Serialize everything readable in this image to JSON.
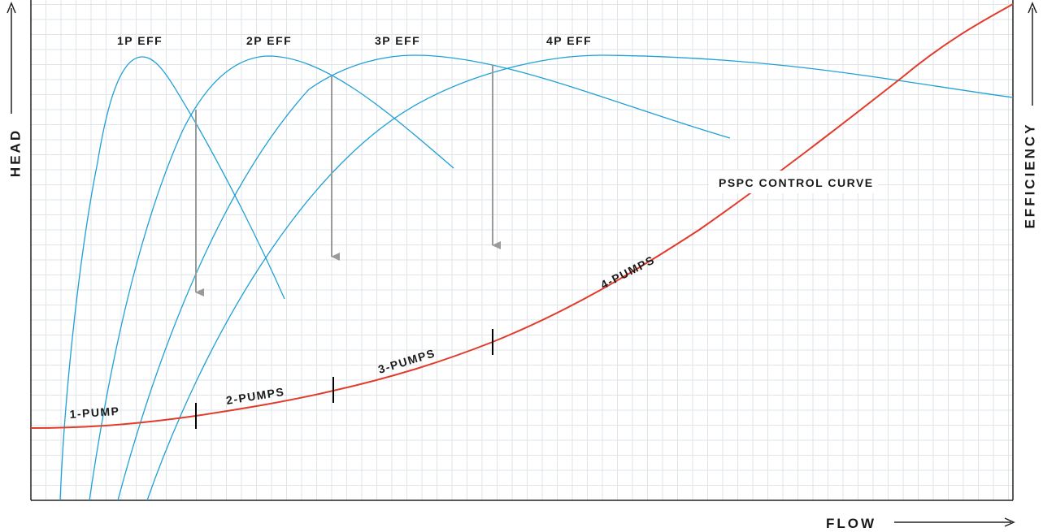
{
  "axes": {
    "head_label": "HEAD",
    "flow_label": "FLOW",
    "efficiency_label": "EFFICIENCY"
  },
  "efficiency_labels": [
    "1P EFF",
    "2P EFF",
    "3P EFF",
    "4P EFF"
  ],
  "stage_labels": [
    "1-PUMP",
    "2-PUMPS",
    "3-PUMPS",
    "4-PUMPS"
  ],
  "control_curve_label": "PSPC CONTROL CURVE",
  "colors": {
    "control_curve": "#e23b2a",
    "efficiency_curves": "#1fa0d6",
    "arrows": "#9a9a9a",
    "grid": "#dfe4e8",
    "axis": "#222222",
    "stage_markers": "#000000"
  }
}
